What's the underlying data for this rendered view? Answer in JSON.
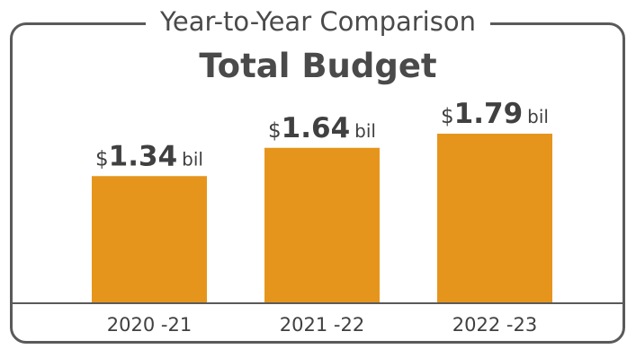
{
  "chart_data": {
    "type": "bar",
    "subtitle": "Year-to-Year Comparison",
    "title": "Total Budget",
    "categories": [
      "2020-21",
      "2021-22",
      "2022-23"
    ],
    "values": [
      1.34,
      1.64,
      1.79
    ],
    "value_labels": [
      {
        "prefix": "$",
        "number": "1.34",
        "suffix": "bil"
      },
      {
        "prefix": "$",
        "number": "1.64",
        "suffix": "bil"
      },
      {
        "prefix": "$",
        "number": "1.79",
        "suffix": "bil"
      }
    ],
    "tick_labels": [
      "2020 -21",
      "2021 -22",
      "2022 -23"
    ],
    "unit": "billion dollars",
    "ylim": [
      0,
      1.79
    ],
    "bar_color": "#E6951C",
    "axis_color": "#5a5a5a",
    "grid": false,
    "legend": "none"
  }
}
